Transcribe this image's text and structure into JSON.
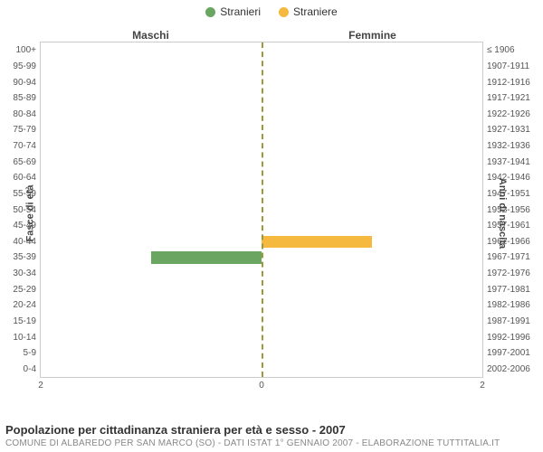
{
  "legend": {
    "male": {
      "label": "Stranieri",
      "color": "#6aa661"
    },
    "female": {
      "label": "Straniere",
      "color": "#f5b940"
    }
  },
  "panels": {
    "left": "Maschi",
    "right": "Femmine"
  },
  "axis": {
    "left_title": "Fasce di età",
    "right_title": "Anni di nascita",
    "x_max": 2,
    "x_ticks_left": [
      "2",
      "0"
    ],
    "x_ticks_right": [
      "0",
      "2"
    ],
    "center_line_color": "#9a9a3a"
  },
  "caption": {
    "title": "Popolazione per cittadinanza straniera per età e sesso - 2007",
    "subtitle": "COMUNE DI ALBAREDO PER SAN MARCO (SO) - Dati ISTAT 1° gennaio 2007 - Elaborazione TUTTITALIA.IT"
  },
  "plot": {
    "border_color": "#cccccc",
    "background_color": "#ffffff"
  },
  "rows": [
    {
      "age": "100+",
      "birth": "≤ 1906",
      "m": 0,
      "f": 0
    },
    {
      "age": "95-99",
      "birth": "1907-1911",
      "m": 0,
      "f": 0
    },
    {
      "age": "90-94",
      "birth": "1912-1916",
      "m": 0,
      "f": 0
    },
    {
      "age": "85-89",
      "birth": "1917-1921",
      "m": 0,
      "f": 0
    },
    {
      "age": "80-84",
      "birth": "1922-1926",
      "m": 0,
      "f": 0
    },
    {
      "age": "75-79",
      "birth": "1927-1931",
      "m": 0,
      "f": 0
    },
    {
      "age": "70-74",
      "birth": "1932-1936",
      "m": 0,
      "f": 0
    },
    {
      "age": "65-69",
      "birth": "1937-1941",
      "m": 0,
      "f": 0
    },
    {
      "age": "60-64",
      "birth": "1942-1946",
      "m": 0,
      "f": 0
    },
    {
      "age": "55-59",
      "birth": "1947-1951",
      "m": 0,
      "f": 0
    },
    {
      "age": "50-54",
      "birth": "1952-1956",
      "m": 0,
      "f": 0
    },
    {
      "age": "45-49",
      "birth": "1957-1961",
      "m": 0,
      "f": 0
    },
    {
      "age": "40-44",
      "birth": "1962-1966",
      "m": 0,
      "f": 1
    },
    {
      "age": "35-39",
      "birth": "1967-1971",
      "m": 1,
      "f": 0
    },
    {
      "age": "30-34",
      "birth": "1972-1976",
      "m": 0,
      "f": 0
    },
    {
      "age": "25-29",
      "birth": "1977-1981",
      "m": 0,
      "f": 0
    },
    {
      "age": "20-24",
      "birth": "1982-1986",
      "m": 0,
      "f": 0
    },
    {
      "age": "15-19",
      "birth": "1987-1991",
      "m": 0,
      "f": 0
    },
    {
      "age": "10-14",
      "birth": "1992-1996",
      "m": 0,
      "f": 0
    },
    {
      "age": "5-9",
      "birth": "1997-2001",
      "m": 0,
      "f": 0
    },
    {
      "age": "0-4",
      "birth": "2002-2006",
      "m": 0,
      "f": 0
    }
  ]
}
